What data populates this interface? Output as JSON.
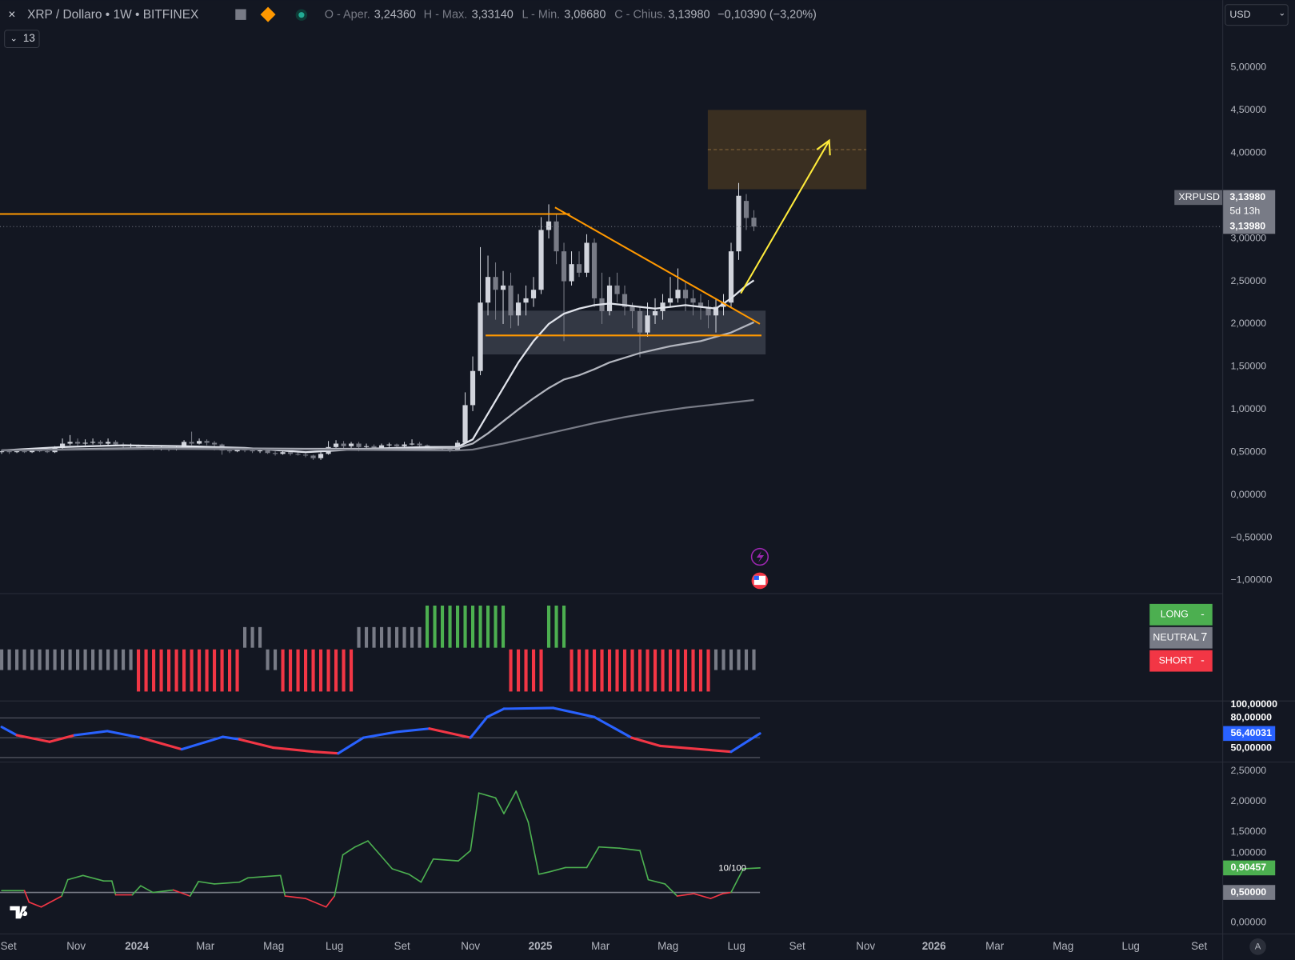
{
  "header": {
    "symbol": "XRP / Dollaro • 1W • BITFINEX",
    "open_label": "O - Aper.",
    "open": "3,24360",
    "high_label": "H - Max.",
    "high": "3,33140",
    "low_label": "L - Min.",
    "low": "3,08680",
    "close_label": "C - Chius.",
    "close": "3,13980",
    "change": "−0,10390 (−3,20%)",
    "indicators": "13",
    "currency": "USD",
    "auto": "A"
  },
  "price_tag": {
    "symbol": "XRPUSD",
    "price": "3,13980",
    "countdown": "5d 13h",
    "axis_price": "3,13980"
  },
  "signal_table": {
    "long_label": "LONG",
    "long": "-",
    "neutral_label": "NEUTRAL",
    "neutral": "7",
    "short_label": "SHORT",
    "short": "-"
  },
  "annotation": "10/100",
  "chart_data": [
    {
      "type": "candlestick",
      "open": [
        0.5,
        0.51,
        0.5,
        0.51,
        0.5,
        0.52,
        0.51,
        0.5,
        0.55,
        0.6,
        0.62,
        0.6,
        0.61,
        0.62,
        0.6,
        0.62,
        0.59,
        0.57,
        0.58,
        0.56,
        0.55,
        0.54,
        0.55,
        0.53,
        0.55,
        0.62,
        0.6,
        0.63,
        0.61,
        0.59,
        0.52,
        0.51,
        0.54,
        0.52,
        0.51,
        0.52,
        0.49,
        0.48,
        0.5,
        0.48,
        0.47,
        0.46,
        0.43,
        0.48,
        0.56,
        0.6,
        0.57,
        0.6,
        0.56,
        0.57,
        0.55,
        0.58,
        0.59,
        0.57,
        0.59,
        0.6,
        0.58,
        0.55,
        0.54,
        0.55,
        0.53,
        0.61,
        1.05,
        1.45,
        2.25,
        2.55,
        2.4,
        2.45,
        2.1,
        2.25,
        2.3,
        2.4,
        3.1,
        3.2,
        2.85,
        2.5,
        2.7,
        2.6,
        2.95,
        2.3,
        2.15,
        2.45,
        2.35,
        2.2,
        2.15,
        1.9,
        2.1,
        2.15,
        2.25,
        2.3,
        2.4,
        2.3,
        2.25,
        2.2,
        2.1,
        2.2,
        2.25,
        2.85,
        3.44,
        3.2436
      ],
      "high": [
        0.53,
        0.52,
        0.53,
        0.52,
        0.54,
        0.55,
        0.53,
        0.57,
        0.66,
        0.7,
        0.66,
        0.65,
        0.66,
        0.64,
        0.66,
        0.64,
        0.61,
        0.6,
        0.59,
        0.58,
        0.57,
        0.57,
        0.56,
        0.57,
        0.64,
        0.74,
        0.66,
        0.65,
        0.63,
        0.6,
        0.54,
        0.56,
        0.55,
        0.54,
        0.53,
        0.53,
        0.51,
        0.52,
        0.51,
        0.5,
        0.49,
        0.47,
        0.52,
        0.63,
        0.64,
        0.63,
        0.62,
        0.62,
        0.6,
        0.59,
        0.6,
        0.61,
        0.6,
        0.62,
        0.65,
        0.62,
        0.59,
        0.57,
        0.56,
        0.56,
        0.64,
        1.2,
        1.62,
        2.9,
        2.8,
        2.72,
        2.62,
        2.6,
        2.35,
        2.45,
        2.55,
        3.25,
        3.4,
        3.28,
        2.95,
        2.85,
        2.85,
        3.05,
        3.0,
        2.6,
        2.55,
        2.6,
        2.45,
        2.25,
        2.2,
        2.25,
        2.3,
        2.35,
        2.55,
        2.65,
        2.5,
        2.4,
        2.35,
        2.28,
        2.3,
        2.35,
        2.95,
        3.65,
        3.52,
        3.3314
      ],
      "low": [
        0.48,
        0.48,
        0.49,
        0.49,
        0.49,
        0.5,
        0.49,
        0.49,
        0.54,
        0.58,
        0.57,
        0.58,
        0.59,
        0.57,
        0.58,
        0.57,
        0.55,
        0.54,
        0.53,
        0.53,
        0.52,
        0.52,
        0.51,
        0.52,
        0.54,
        0.58,
        0.59,
        0.58,
        0.52,
        0.47,
        0.49,
        0.5,
        0.5,
        0.49,
        0.49,
        0.48,
        0.46,
        0.47,
        0.46,
        0.46,
        0.44,
        0.41,
        0.41,
        0.47,
        0.55,
        0.52,
        0.55,
        0.51,
        0.54,
        0.52,
        0.54,
        0.56,
        0.55,
        0.56,
        0.58,
        0.56,
        0.53,
        0.52,
        0.52,
        0.5,
        0.52,
        0.6,
        0.98,
        1.4,
        2.1,
        2.05,
        2.0,
        1.95,
        1.98,
        2.1,
        2.2,
        2.35,
        3.0,
        2.7,
        1.8,
        2.45,
        2.55,
        2.55,
        2.2,
        2.0,
        2.1,
        2.25,
        2.1,
        1.95,
        1.61,
        1.85,
        2.0,
        2.05,
        2.2,
        2.25,
        2.15,
        2.1,
        2.05,
        1.95,
        1.9,
        2.1,
        2.2,
        2.75,
        3.1,
        3.0868
      ],
      "close": [
        0.51,
        0.5,
        0.51,
        0.5,
        0.52,
        0.51,
        0.5,
        0.55,
        0.6,
        0.62,
        0.6,
        0.61,
        0.62,
        0.6,
        0.62,
        0.59,
        0.57,
        0.58,
        0.56,
        0.55,
        0.54,
        0.55,
        0.53,
        0.55,
        0.62,
        0.6,
        0.63,
        0.61,
        0.59,
        0.52,
        0.51,
        0.54,
        0.52,
        0.51,
        0.52,
        0.49,
        0.48,
        0.5,
        0.48,
        0.47,
        0.46,
        0.43,
        0.48,
        0.56,
        0.6,
        0.57,
        0.6,
        0.56,
        0.57,
        0.55,
        0.58,
        0.59,
        0.57,
        0.59,
        0.6,
        0.58,
        0.55,
        0.54,
        0.55,
        0.53,
        0.61,
        1.05,
        1.45,
        2.25,
        2.55,
        2.4,
        2.45,
        2.1,
        2.25,
        2.3,
        2.4,
        3.1,
        3.2,
        2.85,
        2.5,
        2.7,
        2.6,
        2.95,
        2.3,
        2.15,
        2.45,
        2.35,
        2.2,
        2.15,
        1.9,
        2.1,
        2.15,
        2.25,
        2.3,
        2.4,
        2.3,
        2.25,
        2.2,
        2.1,
        2.2,
        2.25,
        2.85,
        3.5,
        3.24,
        3.1398
      ],
      "up_color": "#d1d4dc",
      "down_color": "#787b86",
      "last_line_color": "#787b86",
      "ma": [
        {
          "color": "#e0e3eb",
          "x": [
            0,
            8,
            16,
            24,
            32,
            40,
            48,
            56,
            60,
            62,
            64,
            66,
            68,
            70,
            72,
            74,
            76,
            78,
            80,
            82,
            84,
            86,
            88,
            90,
            92,
            94,
            96,
            98,
            99
          ],
          "values": [
            0.52,
            0.56,
            0.58,
            0.57,
            0.55,
            0.5,
            0.54,
            0.56,
            0.56,
            0.65,
            0.95,
            1.25,
            1.55,
            1.8,
            2.0,
            2.12,
            2.18,
            2.22,
            2.24,
            2.22,
            2.2,
            2.18,
            2.2,
            2.22,
            2.2,
            2.18,
            2.3,
            2.45,
            2.51
          ]
        },
        {
          "color": "#b2b5be",
          "x": [
            0,
            20,
            40,
            56,
            60,
            62,
            64,
            66,
            68,
            70,
            72,
            74,
            76,
            78,
            80,
            84,
            88,
            92,
            96,
            99
          ],
          "values": [
            0.52,
            0.55,
            0.54,
            0.54,
            0.55,
            0.6,
            0.72,
            0.86,
            1.0,
            1.13,
            1.25,
            1.35,
            1.4,
            1.47,
            1.55,
            1.66,
            1.74,
            1.8,
            1.9,
            2.02
          ]
        },
        {
          "color": "#787b86",
          "x": [
            0,
            20,
            40,
            56,
            60,
            62,
            66,
            70,
            74,
            78,
            82,
            86,
            90,
            94,
            99
          ],
          "values": [
            0.52,
            0.54,
            0.53,
            0.52,
            0.52,
            0.53,
            0.6,
            0.68,
            0.76,
            0.84,
            0.91,
            0.97,
            1.02,
            1.06,
            1.11
          ]
        }
      ],
      "xlim": [
        -0.22,
        160.65
      ],
      "xticks": [
        {
          "value": 0.9,
          "label": "Set"
        },
        {
          "value": 9.8,
          "label": "Nov"
        },
        {
          "value": 17.8,
          "label": "2024"
        },
        {
          "value": 26.8,
          "label": "Mar"
        },
        {
          "value": 35.8,
          "label": "Mag"
        },
        {
          "value": 43.8,
          "label": "Lug"
        },
        {
          "value": 52.7,
          "label": "Set"
        },
        {
          "value": 61.7,
          "label": "Nov"
        },
        {
          "value": 70.9,
          "label": "2025"
        },
        {
          "value": 78.8,
          "label": "Mar"
        },
        {
          "value": 87.7,
          "label": "Mag"
        },
        {
          "value": 96.7,
          "label": "Lug"
        },
        {
          "value": 104.7,
          "label": "Set"
        },
        {
          "value": 113.7,
          "label": "Nov"
        },
        {
          "value": 122.7,
          "label": "2026"
        },
        {
          "value": 130.7,
          "label": "Mar"
        },
        {
          "value": 139.7,
          "label": "Mag"
        },
        {
          "value": 148.6,
          "label": "Lug"
        },
        {
          "value": 157.6,
          "label": "Set"
        }
      ],
      "ylim": [
        -1.15,
        5.79
      ],
      "yticks": [
        {
          "value": 5,
          "label": "5,00000"
        },
        {
          "value": 4.5,
          "label": "4,50000"
        },
        {
          "value": 4,
          "label": "4,00000"
        },
        {
          "value": 3,
          "label": "3,00000"
        },
        {
          "value": 2.5,
          "label": "2,50000"
        },
        {
          "value": 2,
          "label": "2,00000"
        },
        {
          "value": 1.5,
          "label": "1,50000"
        },
        {
          "value": 1,
          "label": "1,00000"
        },
        {
          "value": 0.5,
          "label": "0,50000"
        },
        {
          "value": 0,
          "label": "0,00000"
        },
        {
          "value": -0.5,
          "label": "−0,50000"
        },
        {
          "value": -1,
          "label": "−1,00000"
        }
      ]
    },
    {
      "type": "bar",
      "values": [
        -1,
        -1,
        -1,
        -1,
        -1,
        -1,
        -1,
        -1,
        -1,
        -1,
        -1,
        -1,
        -1,
        -1,
        -1,
        -1,
        -1,
        -1,
        -2,
        -2,
        -2,
        -2,
        -2,
        -2,
        -2,
        -2,
        -2,
        -2,
        -2,
        -2,
        -2,
        -2,
        1,
        1,
        1,
        -1,
        -1,
        -2,
        -2,
        -2,
        -2,
        -2,
        -2,
        -2,
        -2,
        -2,
        -2,
        1,
        1,
        1,
        1,
        1,
        1,
        1,
        1,
        1,
        2,
        2,
        2,
        2,
        2,
        2,
        2,
        2,
        2,
        2,
        2,
        -2,
        -2,
        -2,
        -2,
        -2,
        2,
        2,
        2,
        -2,
        -2,
        -2,
        -2,
        -2,
        -2,
        -2,
        -2,
        -2,
        -2,
        -2,
        -2,
        -2,
        -2,
        -2,
        -2,
        -2,
        -2,
        -2,
        -1,
        -1,
        -1,
        -1,
        -1,
        -1
      ],
      "colors": {
        "long": "#4caf50",
        "neutral": "#787b86",
        "short": "#f23645"
      },
      "ylim": [
        -2.42,
        2.54
      ]
    },
    {
      "type": "line",
      "x": [
        0,
        2,
        6.3,
        9.6,
        13.9,
        18.3,
        23.7,
        29.1,
        31.3,
        35.7,
        41.1,
        44.3,
        47.6,
        52,
        56.3,
        61.7,
        63.9,
        66.1,
        72.6,
        78,
        82.9,
        86.7,
        93.3,
        96,
        99.8
      ],
      "values": [
        66.3,
        53.8,
        43.8,
        53.8,
        60,
        50,
        32.5,
        51.3,
        47.5,
        35,
        28.8,
        26.3,
        50,
        58.8,
        63.8,
        50,
        81.3,
        93.8,
        95,
        81.3,
        50,
        37.5,
        31.3,
        28.8,
        56.40031
      ],
      "colors": [
        "#2962ff",
        "#2962ff",
        "#f23645",
        "#f23645",
        "#2962ff",
        "#2962ff",
        "#f23645",
        "#2962ff",
        "#2962ff",
        "#f23645",
        "#f23645",
        "#f23645",
        "#2962ff",
        "#2962ff",
        "#2962ff",
        "#f23645",
        "#2962ff",
        "#2962ff",
        "#2962ff",
        "#2962ff",
        "#2962ff",
        "#f23645",
        "#f23645",
        "#f23645",
        "#2962ff"
      ],
      "levels": [
        80,
        50,
        20
      ],
      "last_value_label": "56,40031",
      "last_value_color": "#2962ff",
      "ylim": [
        13.75,
        105
      ],
      "yticks": [
        {
          "value": 100,
          "label": "100,00000"
        },
        {
          "value": 80,
          "label": "80,00000"
        },
        {
          "value": 50,
          "label": "50,00000"
        }
      ]
    },
    {
      "type": "line",
      "x": [
        0,
        3,
        3.6,
        5.2,
        7.9,
        8.7,
        10.7,
        13.4,
        14.5,
        15,
        17.2,
        18.3,
        19.9,
        22.6,
        24.8,
        25.9,
        28,
        31.3,
        32.4,
        36.7,
        37.3,
        40,
        42.7,
        43.8,
        44.9,
        46.5,
        48.2,
        51.4,
        53.6,
        55.2,
        56.8,
        60.1,
        61.7,
        62.8,
        65,
        66.1,
        67.7,
        69.3,
        70.7,
        72.1,
        74.2,
        77,
        78.6,
        81.3,
        84,
        85.1,
        87.3,
        88.9,
        91.1,
        93.3,
        94.9,
        96,
        97.6,
        99.8
      ],
      "values": [
        0.53,
        0.53,
        0.34,
        0.26,
        0.44,
        0.71,
        0.78,
        0.69,
        0.69,
        0.46,
        0.46,
        0.61,
        0.5,
        0.54,
        0.44,
        0.68,
        0.64,
        0.67,
        0.74,
        0.78,
        0.44,
        0.4,
        0.26,
        0.44,
        1.12,
        1.25,
        1.35,
        0.89,
        0.8,
        0.67,
        1.05,
        1.02,
        1.19,
        2.14,
        2.06,
        1.8,
        2.17,
        1.66,
        0.8,
        0.84,
        0.91,
        0.91,
        1.25,
        1.23,
        1.19,
        0.71,
        0.64,
        0.44,
        0.48,
        0.4,
        0.48,
        0.5,
        0.89,
        0.90457
      ],
      "threshold": 0.5,
      "threshold_color": "#787b86",
      "colors": {
        "above": "#4caf50",
        "below": "#f23645"
      },
      "last_value_label": "0,90457",
      "last_value_color": "#4caf50",
      "ylim": [
        -0.177,
        2.643
      ],
      "yticks": [
        {
          "value": 2.5,
          "label": "2,50000"
        },
        {
          "value": 2,
          "label": "2,00000"
        },
        {
          "value": 1.5,
          "label": "1,50000"
        },
        {
          "value": 1,
          "label": "1,00000"
        },
        {
          "value": 0.5,
          "label": "0,50000"
        },
        {
          "value": 0,
          "label": "0,00000"
        }
      ]
    }
  ]
}
